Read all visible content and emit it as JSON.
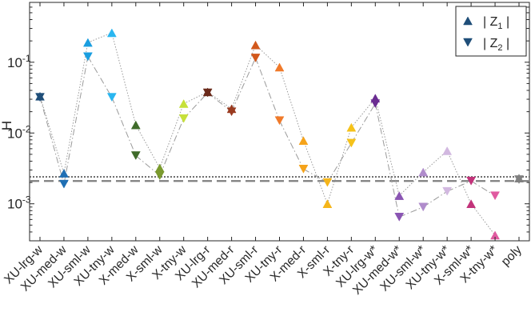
{
  "chart_data": {
    "type": "scatter",
    "title": "",
    "xlabel": "",
    "ylabel": "H",
    "yscale": "log",
    "ylim": [
      0.0003,
      0.7
    ],
    "yticks": [
      {
        "value": 0.001,
        "base": "10",
        "exp": "-3"
      },
      {
        "value": 0.01,
        "base": "10",
        "exp": "-2"
      },
      {
        "value": 0.1,
        "base": "10",
        "exp": "-1"
      }
    ],
    "grid": false,
    "legend": {
      "position": "top-right",
      "entries": [
        {
          "marker": "triangle-up",
          "label": "| Z",
          "sub": "1",
          "suffix": " |"
        },
        {
          "marker": "triangle-down",
          "label": "| Z",
          "sub": "2",
          "suffix": " |"
        }
      ]
    },
    "categories": [
      "XU-lrg-w",
      "XU-med-w",
      "XU-sml-w",
      "XU-tny-w",
      "X-med-w",
      "X-sml-w",
      "X-tny-w",
      "XU-lrg-r",
      "XU-med-r",
      "XU-sml-r",
      "XU-tny-r",
      "X-med-r",
      "X-sml-r",
      "X-tny-r",
      "XU-lrg-w*",
      "XU-med-w*",
      "XU-sml-w*",
      "XU-tny-w*",
      "X-sml-w*",
      "X-tny-w*",
      "poly"
    ],
    "colors": [
      "#1f4e79",
      "#1f6fb4",
      "#1a9ee0",
      "#29b6f0",
      "#3f6b2a",
      "#7a9a2e",
      "#c6e03a",
      "#6b2a1a",
      "#9a3b20",
      "#d2581c",
      "#f07a2a",
      "#f5a31a",
      "#f5b51a",
      "#f5c21a",
      "#6a2c91",
      "#8a55b3",
      "#b08ccc",
      "#d2b8e0",
      "#c2337a",
      "#e05aa0",
      "#808080"
    ],
    "series": [
      {
        "name": "|Z1|",
        "marker": "triangle-up",
        "values": [
          0.033,
          0.0027,
          0.19,
          0.26,
          0.013,
          0.0032,
          0.026,
          0.038,
          0.022,
          0.175,
          0.085,
          0.0078,
          0.001,
          0.012,
          0.031,
          0.0013,
          0.0028,
          0.0056,
          0.001,
          0.00036,
          0.0023
        ]
      },
      {
        "name": "|Z2|",
        "marker": "triangle-down",
        "values": [
          0.032,
          0.0019,
          0.12,
          0.032,
          0.0048,
          0.0025,
          0.016,
          0.037,
          0.02,
          0.115,
          0.015,
          0.0031,
          0.002,
          0.0072,
          0.026,
          0.00065,
          0.0009,
          0.0015,
          0.0021,
          0.0013,
          0.0022
        ]
      }
    ],
    "reference_lines": [
      {
        "style": "dotted",
        "value": 0.0024
      },
      {
        "style": "dashed",
        "value": 0.0021
      }
    ],
    "connector_lines": {
      "dotted_between": "|Z1| markers",
      "dashdot_between": "|Z2| markers"
    }
  }
}
